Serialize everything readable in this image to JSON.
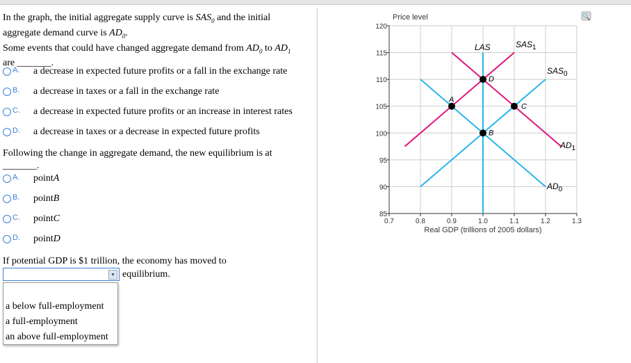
{
  "question1": {
    "line1a": "In the graph, the initial aggregate supply curve is ",
    "sas": "SAS",
    "sub0": "0",
    "line1b": " and the initial",
    "line2a": "aggregate demand curve is ",
    "ad": "AD",
    "line2b": ".",
    "line3a": "Some events that could have changed aggregate demand from ",
    "line3b": " to ",
    "sub1": "1",
    "line4": "are _______.",
    "options": [
      {
        "letter": "A.",
        "text": "a decrease in expected future profits or a fall in the exchange rate"
      },
      {
        "letter": "B.",
        "text": "a decrease in taxes or a fall in the exchange rate"
      },
      {
        "letter": "C.",
        "text": "a decrease in expected future profits or an increase in interest rates"
      },
      {
        "letter": "D.",
        "text": "a decrease in taxes or a decrease in expected future profits"
      }
    ]
  },
  "question2": {
    "line1": "Following the change in aggregate demand, the new equilibrium is at",
    "line2": "_______.",
    "options": [
      {
        "letter": "A.",
        "text": "point ",
        "point": "A"
      },
      {
        "letter": "B.",
        "text": "point ",
        "point": "B"
      },
      {
        "letter": "C.",
        "text": "point ",
        "point": "C"
      },
      {
        "letter": "D.",
        "text": "point ",
        "point": "D"
      }
    ]
  },
  "question3": {
    "line1": "If potential GDP is $1 trillion, the economy has moved to",
    "after": "equilibrium.",
    "selected": "",
    "dropdown_options": [
      "a below full-employment",
      "a full-employment",
      "an above full-employment"
    ]
  },
  "chart_data": {
    "type": "line",
    "ylabel": "Price level",
    "xlabel": "Real GDP (trillions of 2005 dollars)",
    "xlim": [
      0.7,
      1.3
    ],
    "ylim": [
      85,
      120
    ],
    "xticks": [
      "0.7",
      "0.8",
      "0.9",
      "1.0",
      "1.1",
      "1.2",
      "1.3"
    ],
    "yticks": [
      "85",
      "90",
      "95",
      "100",
      "105",
      "110",
      "115",
      "120"
    ],
    "grid": true,
    "series": [
      {
        "name": "LAS",
        "color": "#29b6ea",
        "points": [
          [
            1.0,
            85
          ],
          [
            1.0,
            115
          ]
        ]
      },
      {
        "name": "SAS",
        "sub": "0",
        "color": "#29b6ea",
        "points": [
          [
            0.8,
            90
          ],
          [
            1.2,
            110
          ]
        ]
      },
      {
        "name": "AD",
        "sub": "0",
        "color": "#29b6ea",
        "points": [
          [
            0.8,
            110
          ],
          [
            1.2,
            90
          ]
        ]
      },
      {
        "name": "SAS",
        "sub": "1",
        "color": "#e0197d",
        "points": [
          [
            0.75,
            97.5
          ],
          [
            1.1,
            115
          ]
        ]
      },
      {
        "name": "AD",
        "sub": "1",
        "color": "#e0197d",
        "points": [
          [
            0.9,
            115
          ],
          [
            1.25,
            97.5
          ]
        ]
      }
    ],
    "points": [
      {
        "label": "A",
        "x": 0.9,
        "y": 105
      },
      {
        "label": "B",
        "x": 1.0,
        "y": 100
      },
      {
        "label": "C",
        "x": 1.1,
        "y": 105
      },
      {
        "label": "D",
        "x": 1.0,
        "y": 110
      }
    ],
    "zoom_icon": "magnifier-plus-icon"
  }
}
